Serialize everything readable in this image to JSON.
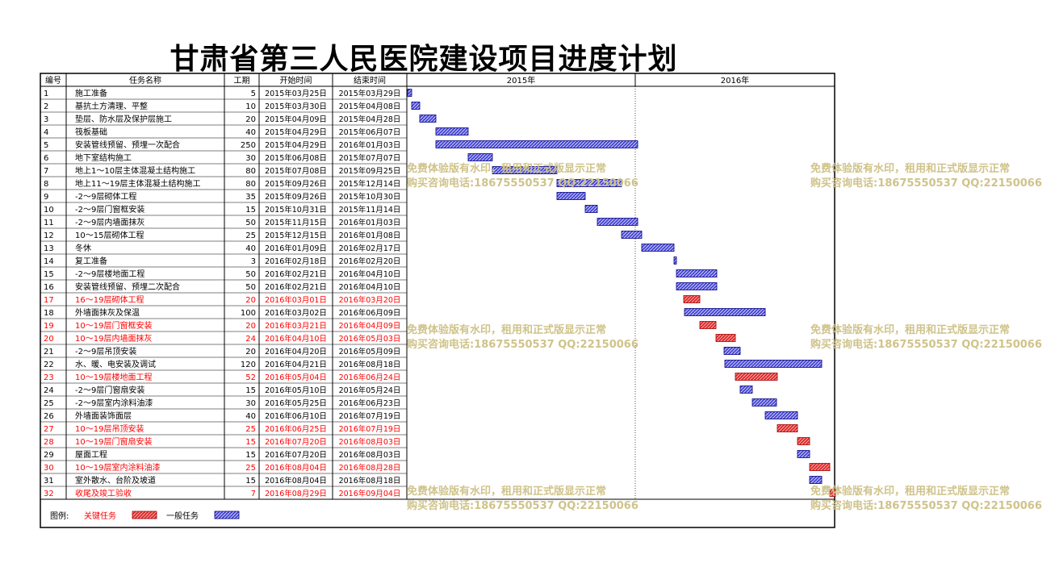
{
  "title": "甘肃省第三人民医院建设项目进度计划",
  "chart_data": {
    "type": "gantt",
    "columns": [
      "编号",
      "任务名称",
      "工期",
      "开始时间",
      "结束时间"
    ],
    "years": [
      "2015年",
      "2016年"
    ],
    "tasks": [
      {
        "id": "1",
        "name": "施工准备",
        "duration": "5",
        "start": "2015年03月25日",
        "end": "2015年03月29日",
        "critical": false
      },
      {
        "id": "2",
        "name": "基抗土方清理、平整",
        "duration": "10",
        "start": "2015年03月30日",
        "end": "2015年04月08日",
        "critical": false
      },
      {
        "id": "3",
        "name": "垫层、防水层及保护层施工",
        "duration": "20",
        "start": "2015年04月09日",
        "end": "2015年04月28日",
        "critical": false
      },
      {
        "id": "4",
        "name": "筏板基础",
        "duration": "40",
        "start": "2015年04月29日",
        "end": "2015年06月07日",
        "critical": false
      },
      {
        "id": "5",
        "name": "安装管线预留、预埋一次配合",
        "duration": "250",
        "start": "2015年04月29日",
        "end": "2016年01月03日",
        "critical": false
      },
      {
        "id": "6",
        "name": "地下室结构施工",
        "duration": "30",
        "start": "2015年06月08日",
        "end": "2015年07月07日",
        "critical": false
      },
      {
        "id": "7",
        "name": "地上1～10层主体混凝土结构施工",
        "duration": "80",
        "start": "2015年07月08日",
        "end": "2015年09月25日",
        "critical": false
      },
      {
        "id": "8",
        "name": "地上11～19层主体混凝土结构施工",
        "duration": "80",
        "start": "2015年09月26日",
        "end": "2015年12月14日",
        "critical": false
      },
      {
        "id": "9",
        "name": "-2～9层砌体工程",
        "duration": "35",
        "start": "2015年09月26日",
        "end": "2015年10月30日",
        "critical": false
      },
      {
        "id": "10",
        "name": "-2～9层门窗框安装",
        "duration": "15",
        "start": "2015年10月31日",
        "end": "2015年11月14日",
        "critical": false
      },
      {
        "id": "11",
        "name": "-2～9层内墙面抹灰",
        "duration": "50",
        "start": "2015年11月15日",
        "end": "2016年01月03日",
        "critical": false
      },
      {
        "id": "12",
        "name": "10～15层砌体工程",
        "duration": "25",
        "start": "2015年12月15日",
        "end": "2016年01月08日",
        "critical": false
      },
      {
        "id": "13",
        "name": "冬休",
        "duration": "40",
        "start": "2016年01月09日",
        "end": "2016年02月17日",
        "critical": false
      },
      {
        "id": "14",
        "name": "复工准备",
        "duration": "3",
        "start": "2016年02月18日",
        "end": "2016年02月20日",
        "critical": false
      },
      {
        "id": "15",
        "name": "-2～9层楼地面工程",
        "duration": "50",
        "start": "2016年02月21日",
        "end": "2016年04月10日",
        "critical": false
      },
      {
        "id": "16",
        "name": "安装管线预留、预埋二次配合",
        "duration": "50",
        "start": "2016年02月21日",
        "end": "2016年04月10日",
        "critical": false
      },
      {
        "id": "17",
        "name": "16～19层砌体工程",
        "duration": "20",
        "start": "2016年03月01日",
        "end": "2016年03月20日",
        "critical": true
      },
      {
        "id": "18",
        "name": "外墙面抹灰及保温",
        "duration": "100",
        "start": "2016年03月02日",
        "end": "2016年06月09日",
        "critical": false
      },
      {
        "id": "19",
        "name": "10～19层门窗框安装",
        "duration": "20",
        "start": "2016年03月21日",
        "end": "2016年04月09日",
        "critical": true
      },
      {
        "id": "20",
        "name": "10～19层内墙面抹灰",
        "duration": "24",
        "start": "2016年04月10日",
        "end": "2016年05月03日",
        "critical": true
      },
      {
        "id": "21",
        "name": "-2～9层吊顶安装",
        "duration": "20",
        "start": "2016年04月20日",
        "end": "2016年05月09日",
        "critical": false
      },
      {
        "id": "22",
        "name": "水、暖、电安装及调试",
        "duration": "120",
        "start": "2016年04月21日",
        "end": "2016年08月18日",
        "critical": false
      },
      {
        "id": "23",
        "name": "10～19层楼地面工程",
        "duration": "52",
        "start": "2016年05月04日",
        "end": "2016年06月24日",
        "critical": true
      },
      {
        "id": "24",
        "name": "-2～9层门窗扇安装",
        "duration": "15",
        "start": "2016年05月10日",
        "end": "2016年05月24日",
        "critical": false
      },
      {
        "id": "25",
        "name": "-2～9层室内涂料油漆",
        "duration": "30",
        "start": "2016年05月25日",
        "end": "2016年06月23日",
        "critical": false
      },
      {
        "id": "26",
        "name": "外墙面装饰面层",
        "duration": "40",
        "start": "2016年06月10日",
        "end": "2016年07月19日",
        "critical": false
      },
      {
        "id": "27",
        "name": "10～19层吊顶安装",
        "duration": "25",
        "start": "2016年06月25日",
        "end": "2016年07月19日",
        "critical": true
      },
      {
        "id": "28",
        "name": "10～19层门窗扇安装",
        "duration": "15",
        "start": "2016年07月20日",
        "end": "2016年08月03日",
        "critical": true
      },
      {
        "id": "29",
        "name": "屋面工程",
        "duration": "15",
        "start": "2016年07月20日",
        "end": "2016年08月03日",
        "critical": false
      },
      {
        "id": "30",
        "name": "10～19层室内涂料油漆",
        "duration": "25",
        "start": "2016年08月04日",
        "end": "2016年08月28日",
        "critical": true
      },
      {
        "id": "31",
        "name": "室外散水、台阶及坡道",
        "duration": "15",
        "start": "2016年08月04日",
        "end": "2016年08月18日",
        "critical": false
      },
      {
        "id": "32",
        "name": "收尾及竣工验收",
        "duration": "7",
        "start": "2016年08月29日",
        "end": "2016年09月04日",
        "critical": true
      }
    ],
    "legend": {
      "label": "图例:",
      "critical": "关键任务",
      "normal": "一般任务"
    },
    "colors": {
      "critical_text": "#ff0000",
      "critical_bar": "#e03030",
      "normal_bar": "#3333cc",
      "normal_text": "#000000"
    }
  },
  "watermark": {
    "line1": "免费体验版有水印，租用和正式版显示正常",
    "line2": "购买咨询电话:18675550537 QQ:22150066"
  }
}
